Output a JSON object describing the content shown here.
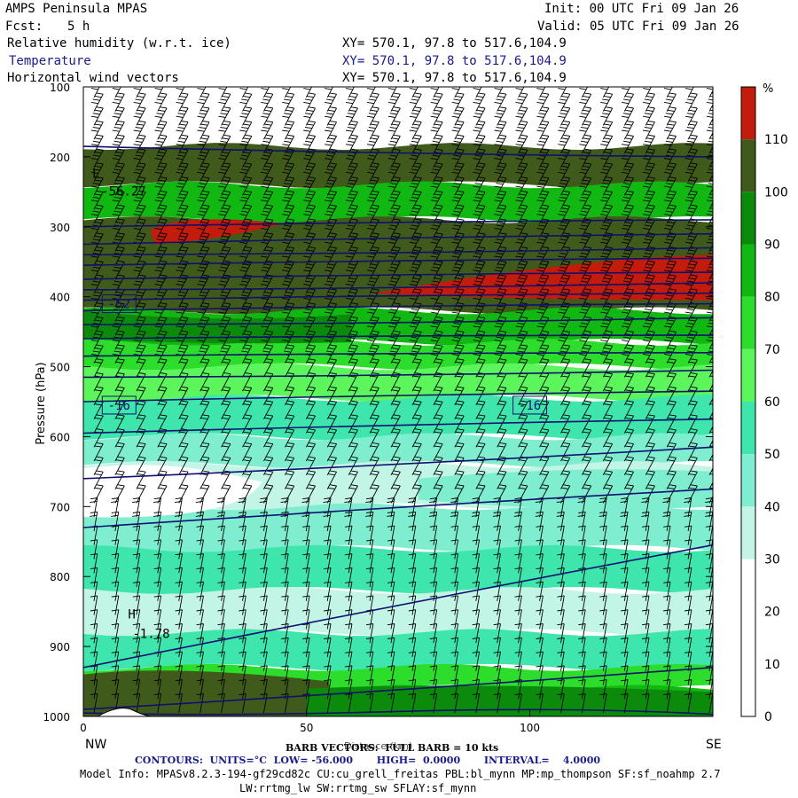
{
  "header": {
    "title": "AMPS Peninsula MPAS",
    "fcst_label": "Fcst:",
    "fcst_value": "5 h",
    "init": "Init: 00 UTC Fri 09 Jan 26",
    "valid": "Valid: 05 UTC Fri 09 Jan 26",
    "fields": [
      {
        "name": "Relative humidity (w.r.t. ice)",
        "xy": "XY= 570.1, 97.8 to 517.6,104.9"
      },
      {
        "name": "Temperature",
        "xy": "XY= 570.1, 97.8 to 517.6,104.9"
      },
      {
        "name": "Horizontal wind vectors",
        "xy": "XY= 570.1, 97.8 to 517.6,104.9"
      }
    ]
  },
  "footer": {
    "barb_text": "BARB VECTORS:  FULL BARB = 10 kts",
    "xlabel_overlap": "Distance (km)",
    "contours": "CONTOURS:  UNITS=°C  LOW= -56.000       HIGH=  0.0000       INTERVAL=    4.0000",
    "model_info_1": "Model Info: MPASv8.2.3-194-gf29cd82c CU:cu_grell_freitas PBL:bl_mynn MP:mp_thompson SF:sf_noahmp 2.7",
    "model_info_2": "LW:rrtmg_lw SW:rrtmg_sw SFLAY:sf_mynn"
  },
  "colors": {
    "white": "#ffffff",
    "l1": "#c2f5e6",
    "l2": "#7fedd0",
    "l3": "#3ee6ad",
    "l4": "#5cf55c",
    "l5": "#2cdd2c",
    "l6": "#11b811",
    "l7": "#0c8a0c",
    "l8": "#3f5a1a",
    "l9": "#c41c0c",
    "contour": "#101070",
    "barb": "#000000"
  },
  "chart_data": {
    "type": "heatmap",
    "ylabel": "Pressure (hPa)",
    "y_ticks": [
      100,
      200,
      300,
      400,
      500,
      600,
      700,
      800,
      900,
      1000
    ],
    "ylim": [
      1000,
      100
    ],
    "x_ticks": [
      0,
      50,
      100
    ],
    "xlim": [
      0,
      141
    ],
    "x_end_labels": {
      "left": "NW",
      "right": "SE"
    },
    "colorbar": {
      "unit": "%",
      "ticks": [
        110,
        100,
        90,
        80,
        70,
        60,
        50,
        40,
        30,
        20,
        10,
        0
      ],
      "levels": [
        {
          "range": [
            110,
            120
          ],
          "color": "#c41c0c"
        },
        {
          "range": [
            100,
            110
          ],
          "color": "#3f5a1a"
        },
        {
          "range": [
            90,
            100
          ],
          "color": "#0c8a0c"
        },
        {
          "range": [
            80,
            90
          ],
          "color": "#11b811"
        },
        {
          "range": [
            70,
            80
          ],
          "color": "#2cdd2c"
        },
        {
          "range": [
            60,
            70
          ],
          "color": "#5cf55c"
        },
        {
          "range": [
            50,
            60
          ],
          "color": "#3ee6ad"
        },
        {
          "range": [
            40,
            50
          ],
          "color": "#7fedd0"
        },
        {
          "range": [
            30,
            40
          ],
          "color": "#c2f5e6"
        },
        {
          "range": [
            20,
            30
          ],
          "color": "#ffffff"
        },
        {
          "range": [
            10,
            20
          ],
          "color": "#ffffff"
        },
        {
          "range": [
            0,
            10
          ],
          "color": "#ffffff"
        }
      ]
    },
    "contour_labels": [
      {
        "text": "-52",
        "x": 8,
        "p": 410
      },
      {
        "text": "-16",
        "x": 8,
        "p": 555
      },
      {
        "text": "-16",
        "x": 100,
        "p": 555
      }
    ],
    "extrema": [
      {
        "text": "L",
        "x": 2,
        "p": 230
      },
      {
        "text": "-56.27",
        "x": 4,
        "p": 255
      },
      {
        "text": "H",
        "x": 10,
        "p": 860
      },
      {
        "text": "-1.78",
        "x": 11,
        "p": 888
      }
    ],
    "temperature_contours_hpa_at_left": [
      185,
      300,
      325,
      340,
      355,
      375,
      390,
      405,
      420,
      440,
      460,
      485,
      515,
      550,
      595,
      660,
      730,
      930,
      990
    ],
    "temperature_contours_hpa_at_right": [
      200,
      290,
      310,
      330,
      345,
      365,
      380,
      395,
      410,
      430,
      455,
      480,
      505,
      535,
      575,
      615,
      675,
      755,
      930,
      985
    ]
  }
}
